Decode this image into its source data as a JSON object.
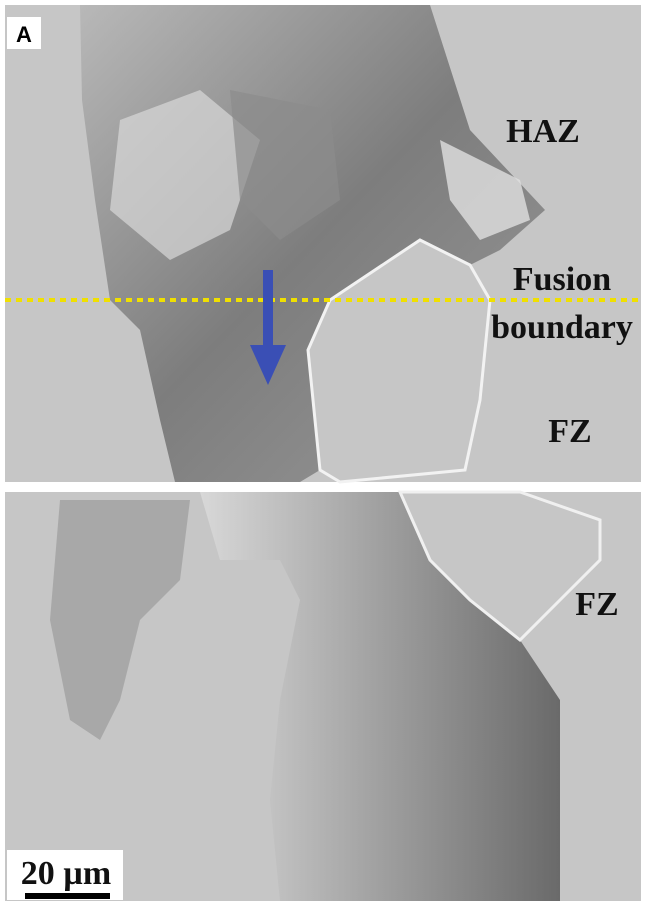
{
  "panel_label": "A",
  "top_panel": {
    "haz_label": "HAZ",
    "fusion_label": [
      "Fusion",
      "boundary"
    ],
    "fz_label": "FZ"
  },
  "bottom_panel": {
    "fz_label": "FZ",
    "scale_bar": "20 µm"
  }
}
